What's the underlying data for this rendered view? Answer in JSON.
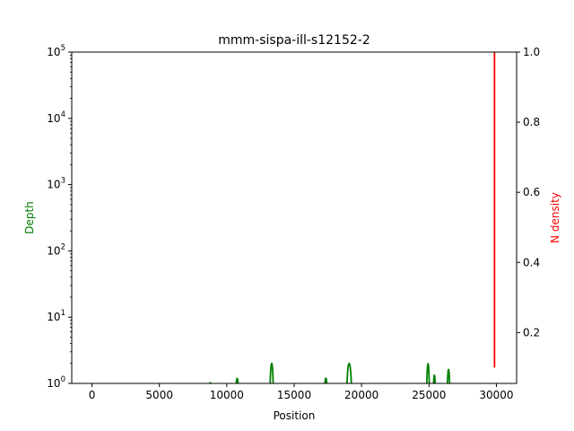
{
  "chart_data": {
    "type": "line",
    "title": "mmm-sispa-ill-s12152-2",
    "xlabel": "Position",
    "ylabel_left": "Depth",
    "ylabel_right": "N density",
    "xlim": [
      -1500,
      31500
    ],
    "ylim_left": [
      1,
      100000
    ],
    "yscale_left": "log",
    "ylim_right": [
      0.055,
      1.0
    ],
    "x_ticks": [
      0,
      5000,
      10000,
      15000,
      20000,
      25000,
      30000
    ],
    "x_tick_labels": [
      "0",
      "5000",
      "10000",
      "15000",
      "20000",
      "25000",
      "30000"
    ],
    "y_left_ticks": [
      {
        "value": 1,
        "base": "10",
        "exp": "0"
      },
      {
        "value": 10,
        "base": "10",
        "exp": "1"
      },
      {
        "value": 100,
        "base": "10",
        "exp": "2"
      },
      {
        "value": 1000,
        "base": "10",
        "exp": "3"
      },
      {
        "value": 10000,
        "base": "10",
        "exp": "4"
      },
      {
        "value": 100000,
        "base": "10",
        "exp": "5"
      }
    ],
    "y_right_ticks": [
      0.2,
      0.4,
      0.6,
      0.8,
      1.0
    ],
    "y_right_tick_labels": [
      "0.2",
      "0.4",
      "0.6",
      "0.8",
      "1.0"
    ],
    "grid": false,
    "series": [
      {
        "axis": "left",
        "color": "#008000",
        "peaks": [
          {
            "center": 8780,
            "height": 1.02,
            "width": 50
          },
          {
            "center": 10770,
            "height": 1.19,
            "width": 70
          },
          {
            "center": 13330,
            "height": 2.0,
            "width": 110
          },
          {
            "center": 17350,
            "height": 1.2,
            "width": 70
          },
          {
            "center": 19080,
            "height": 2.0,
            "width": 160
          },
          {
            "center": 24930,
            "height": 1.97,
            "width": 90
          },
          {
            "center": 25400,
            "height": 1.33,
            "width": 60
          },
          {
            "center": 26450,
            "height": 1.62,
            "width": 80
          }
        ]
      },
      {
        "axis": "right",
        "color": "#ff0000",
        "x": [
          29860,
          29860
        ],
        "y": [
          0.1,
          1.0
        ]
      }
    ]
  }
}
